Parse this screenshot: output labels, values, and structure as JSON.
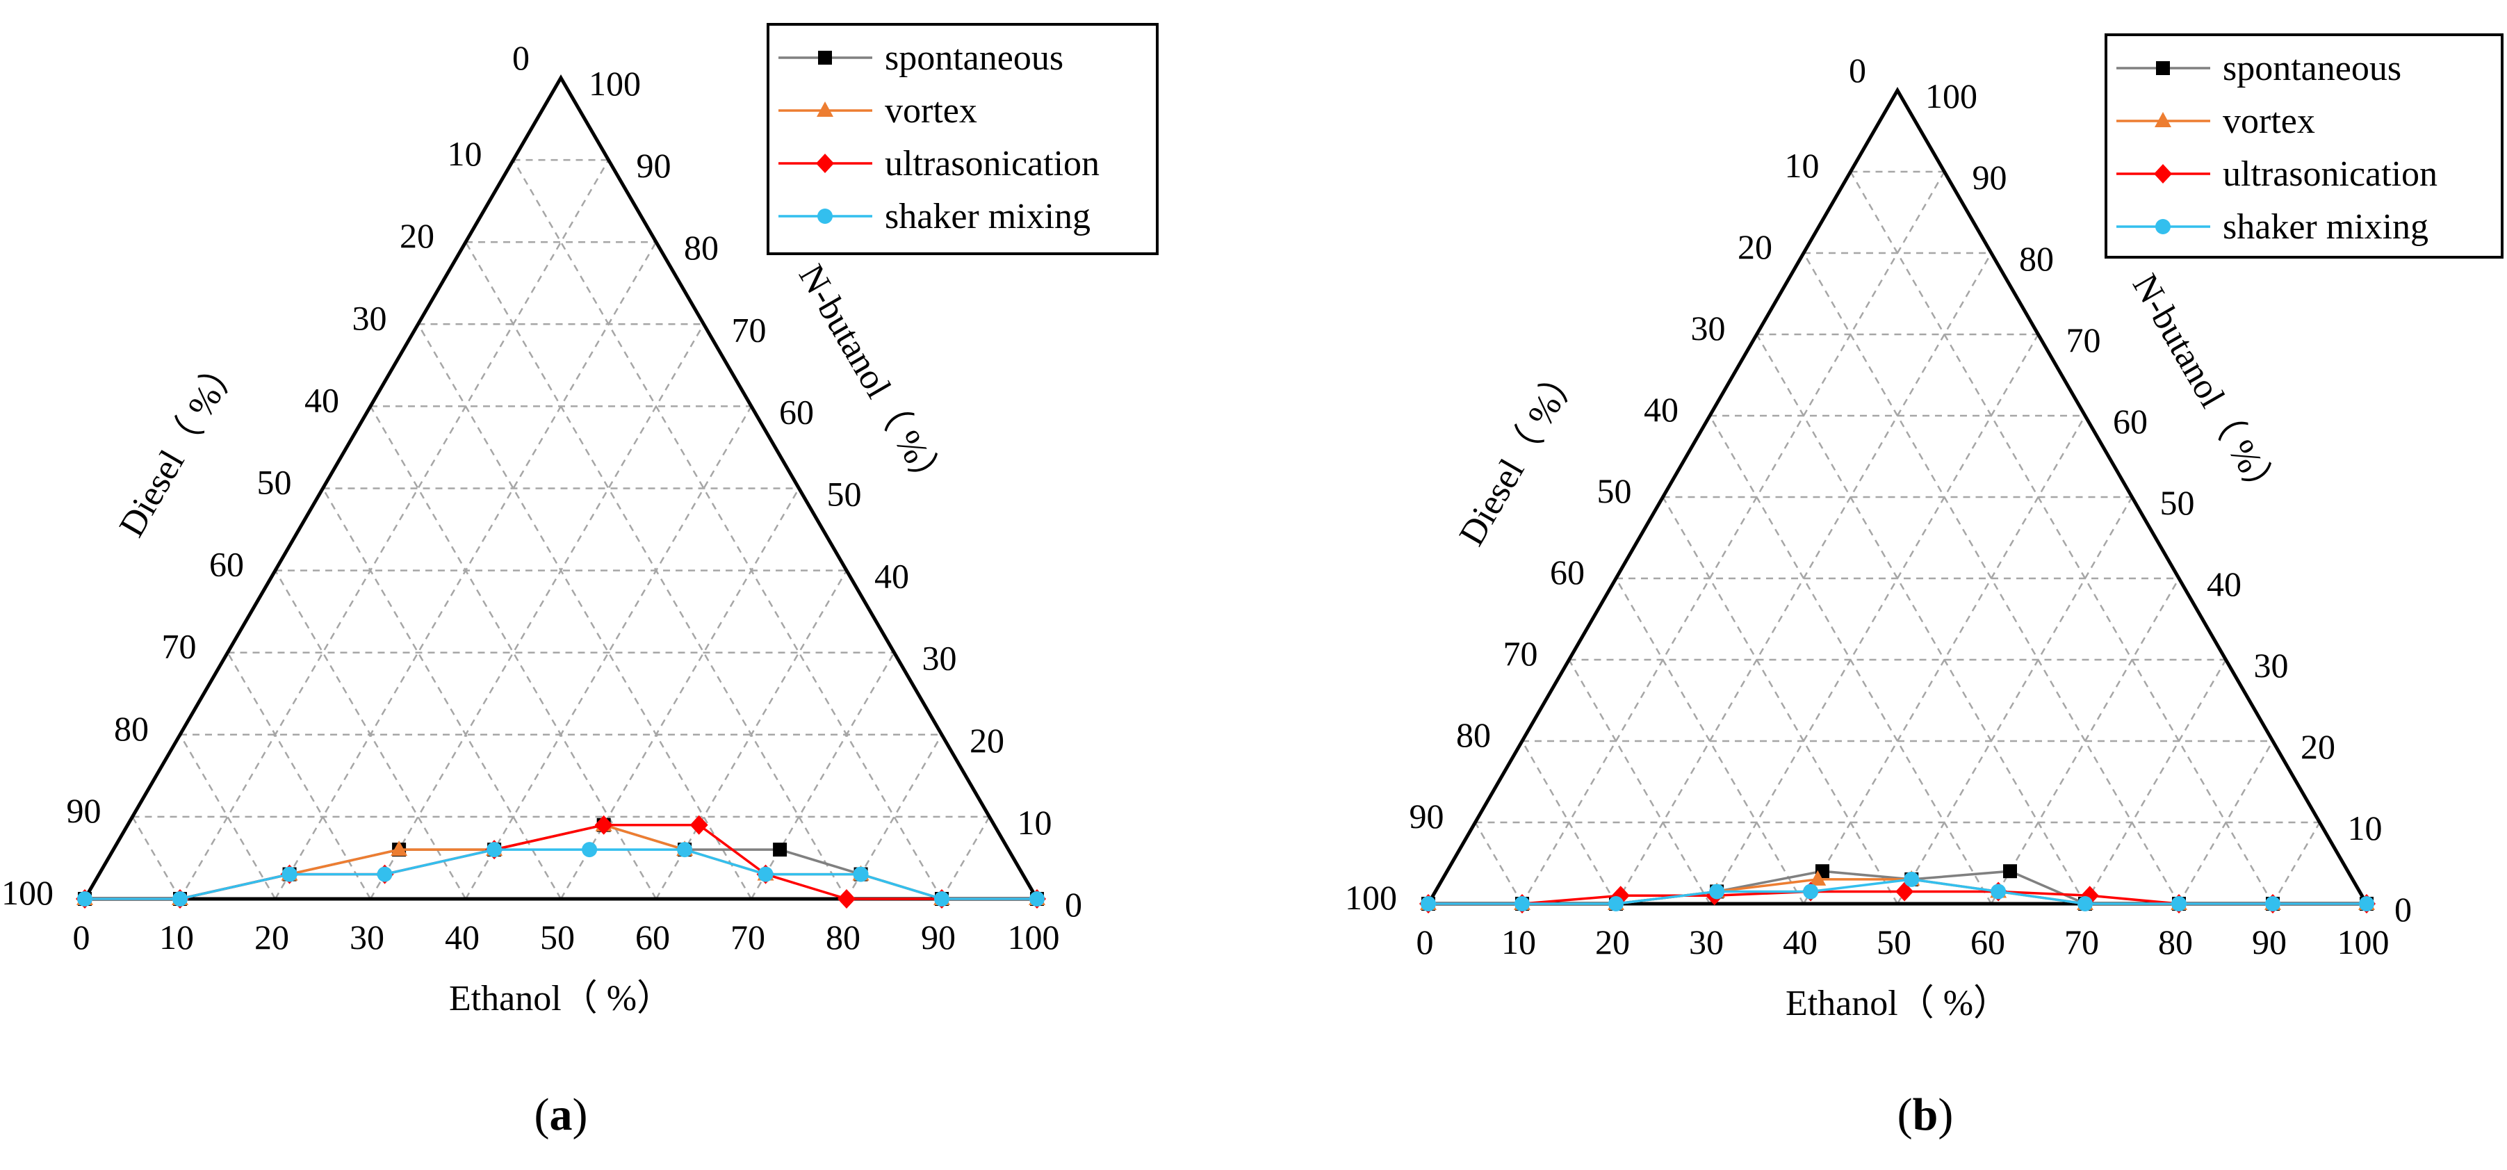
{
  "page": {
    "background": "#ffffff"
  },
  "series_style": [
    {
      "name": "spontaneous",
      "color": "#808080",
      "marker_color": "#000000",
      "marker": "square"
    },
    {
      "name": "vortex",
      "color": "#ED7D31",
      "marker_color": "#ED7D31",
      "marker": "triangle"
    },
    {
      "name": "ultrasonication",
      "color": "#FF0000",
      "marker_color": "#FF0000",
      "marker": "diamond"
    },
    {
      "name": "shaker mixing",
      "color": "#33BFEE",
      "marker_color": "#33BFEE",
      "marker": "circle"
    }
  ],
  "chart_data": [
    {
      "type": "ternary-line",
      "panel_label": "(a)",
      "axes": {
        "bottom": {
          "title": "Ethanol（ %）",
          "ticks": [
            "0",
            "10",
            "20",
            "30",
            "40",
            "50",
            "60",
            "70",
            "80",
            "90",
            "100"
          ]
        },
        "left": {
          "title": "Diesel（ %）",
          "ticks": [
            "0",
            "10",
            "20",
            "30",
            "40",
            "50",
            "60",
            "70",
            "80",
            "90",
            "100"
          ]
        },
        "right": {
          "title": "N-butanol（ %）",
          "ticks": [
            "100",
            "90",
            "80",
            "70",
            "60",
            "50",
            "40",
            "30",
            "20",
            "10",
            "0"
          ]
        }
      },
      "grid": true,
      "legend": {
        "position": "top-right",
        "entries": [
          "spontaneous",
          "vortex",
          "ultrasonication",
          "shaker mixing"
        ]
      },
      "series": [
        {
          "name": "spontaneous",
          "points": [
            {
              "ethanol": 0,
              "butanol": 0
            },
            {
              "ethanol": 10,
              "butanol": 0
            },
            {
              "ethanol": 20,
              "butanol": 3
            },
            {
              "ethanol": 30,
              "butanol": 6
            },
            {
              "ethanol": 40,
              "butanol": 6
            },
            {
              "ethanol": 50,
              "butanol": 9
            },
            {
              "ethanol": 60,
              "butanol": 6
            },
            {
              "ethanol": 70,
              "butanol": 6
            },
            {
              "ethanol": 80,
              "butanol": 3
            },
            {
              "ethanol": 90,
              "butanol": 0
            },
            {
              "ethanol": 100,
              "butanol": 0
            }
          ]
        },
        {
          "name": "vortex",
          "points": [
            {
              "ethanol": 0,
              "butanol": 0
            },
            {
              "ethanol": 10,
              "butanol": 0
            },
            {
              "ethanol": 20,
              "butanol": 3
            },
            {
              "ethanol": 30,
              "butanol": 6
            },
            {
              "ethanol": 40,
              "butanol": 6
            },
            {
              "ethanol": 50,
              "butanol": 9
            },
            {
              "ethanol": 60,
              "butanol": 6
            },
            {
              "ethanol": 70,
              "butanol": 3
            },
            {
              "ethanol": 80,
              "butanol": 3
            },
            {
              "ethanol": 90,
              "butanol": 0
            },
            {
              "ethanol": 100,
              "butanol": 0
            }
          ]
        },
        {
          "name": "ultrasonication",
          "points": [
            {
              "ethanol": 0,
              "butanol": 0
            },
            {
              "ethanol": 10,
              "butanol": 0
            },
            {
              "ethanol": 20,
              "butanol": 3
            },
            {
              "ethanol": 30,
              "butanol": 3
            },
            {
              "ethanol": 40,
              "butanol": 6
            },
            {
              "ethanol": 50,
              "butanol": 9
            },
            {
              "ethanol": 60,
              "butanol": 9
            },
            {
              "ethanol": 70,
              "butanol": 3
            },
            {
              "ethanol": 80,
              "butanol": 0
            },
            {
              "ethanol": 90,
              "butanol": 0
            },
            {
              "ethanol": 100,
              "butanol": 0
            }
          ]
        },
        {
          "name": "shaker mixing",
          "points": [
            {
              "ethanol": 0,
              "butanol": 0
            },
            {
              "ethanol": 10,
              "butanol": 0
            },
            {
              "ethanol": 20,
              "butanol": 3
            },
            {
              "ethanol": 30,
              "butanol": 3
            },
            {
              "ethanol": 40,
              "butanol": 6
            },
            {
              "ethanol": 50,
              "butanol": 6
            },
            {
              "ethanol": 60,
              "butanol": 6
            },
            {
              "ethanol": 70,
              "butanol": 3
            },
            {
              "ethanol": 80,
              "butanol": 3
            },
            {
              "ethanol": 90,
              "butanol": 0
            },
            {
              "ethanol": 100,
              "butanol": 0
            }
          ]
        }
      ]
    },
    {
      "type": "ternary-line",
      "panel_label": "(b)",
      "axes": {
        "bottom": {
          "title": "Ethanol（ %）",
          "ticks": [
            "0",
            "10",
            "20",
            "30",
            "40",
            "50",
            "60",
            "70",
            "80",
            "90",
            "100"
          ]
        },
        "left": {
          "title": "Diesel（ %）",
          "ticks": [
            "0",
            "10",
            "20",
            "30",
            "40",
            "50",
            "60",
            "70",
            "80",
            "90",
            "100"
          ]
        },
        "right": {
          "title": "N-butanol（ %）",
          "ticks": [
            "100",
            "90",
            "80",
            "70",
            "60",
            "50",
            "40",
            "30",
            "20",
            "10",
            "0"
          ]
        }
      },
      "grid": true,
      "legend": {
        "position": "top-right",
        "entries": [
          "spontaneous",
          "vortex",
          "ultrasonication",
          "shaker mixing"
        ]
      },
      "series": [
        {
          "name": "spontaneous",
          "points": [
            {
              "ethanol": 0,
              "butanol": 0
            },
            {
              "ethanol": 10,
              "butanol": 0
            },
            {
              "ethanol": 20,
              "butanol": 0
            },
            {
              "ethanol": 30,
              "butanol": 1.5
            },
            {
              "ethanol": 40,
              "butanol": 4
            },
            {
              "ethanol": 50,
              "butanol": 3
            },
            {
              "ethanol": 60,
              "butanol": 4
            },
            {
              "ethanol": 70,
              "butanol": 0
            },
            {
              "ethanol": 80,
              "butanol": 0
            },
            {
              "ethanol": 90,
              "butanol": 0
            },
            {
              "ethanol": 100,
              "butanol": 0
            }
          ]
        },
        {
          "name": "vortex",
          "points": [
            {
              "ethanol": 0,
              "butanol": 0
            },
            {
              "ethanol": 10,
              "butanol": 0
            },
            {
              "ethanol": 20,
              "butanol": 0
            },
            {
              "ethanol": 30,
              "butanol": 1.5
            },
            {
              "ethanol": 40,
              "butanol": 3
            },
            {
              "ethanol": 50,
              "butanol": 3
            },
            {
              "ethanol": 60,
              "butanol": 1.5
            },
            {
              "ethanol": 70,
              "butanol": 0
            },
            {
              "ethanol": 80,
              "butanol": 0
            },
            {
              "ethanol": 90,
              "butanol": 0
            },
            {
              "ethanol": 100,
              "butanol": 0
            }
          ]
        },
        {
          "name": "ultrasonication",
          "points": [
            {
              "ethanol": 0,
              "butanol": 0
            },
            {
              "ethanol": 10,
              "butanol": 0
            },
            {
              "ethanol": 20,
              "butanol": 1
            },
            {
              "ethanol": 30,
              "butanol": 1
            },
            {
              "ethanol": 40,
              "butanol": 1.5
            },
            {
              "ethanol": 50,
              "butanol": 1.5
            },
            {
              "ethanol": 60,
              "butanol": 1.5
            },
            {
              "ethanol": 70,
              "butanol": 1
            },
            {
              "ethanol": 80,
              "butanol": 0
            },
            {
              "ethanol": 90,
              "butanol": 0
            },
            {
              "ethanol": 100,
              "butanol": 0
            }
          ]
        },
        {
          "name": "shaker mixing",
          "points": [
            {
              "ethanol": 0,
              "butanol": 0
            },
            {
              "ethanol": 10,
              "butanol": 0
            },
            {
              "ethanol": 20,
              "butanol": 0
            },
            {
              "ethanol": 30,
              "butanol": 1.5
            },
            {
              "ethanol": 40,
              "butanol": 1.5
            },
            {
              "ethanol": 50,
              "butanol": 3
            },
            {
              "ethanol": 60,
              "butanol": 1.5
            },
            {
              "ethanol": 70,
              "butanol": 0
            },
            {
              "ethanol": 80,
              "butanol": 0
            },
            {
              "ethanol": 90,
              "butanol": 0
            },
            {
              "ethanol": 100,
              "butanol": 0
            }
          ]
        }
      ]
    }
  ]
}
